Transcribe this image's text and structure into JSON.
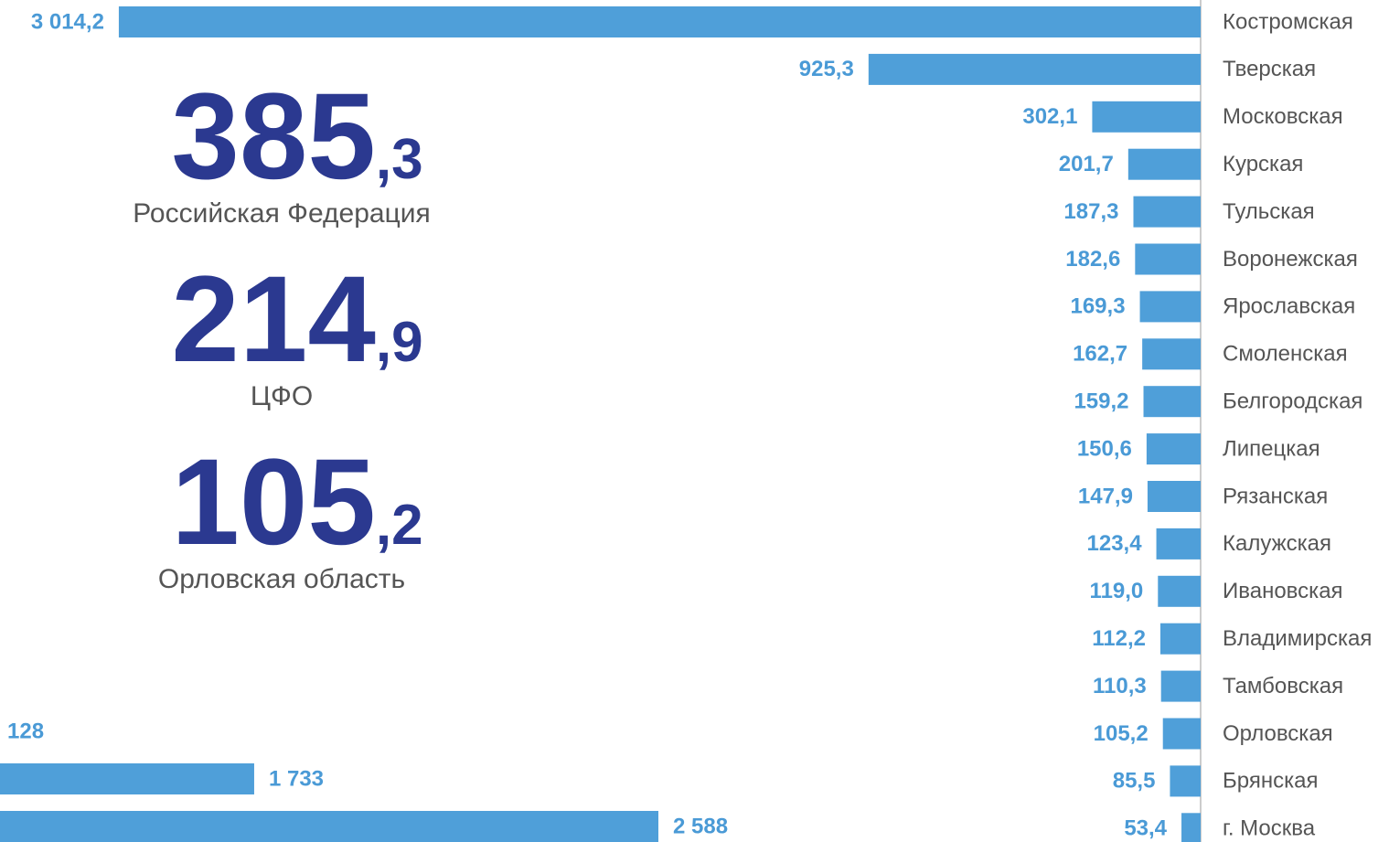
{
  "chart_data": [
    {
      "type": "bar",
      "orientation": "horizontal",
      "color": "#4f9fd9",
      "categories": [
        "Костромская",
        "Тверская",
        "Московская",
        "Курская",
        "Тульская",
        "Воронежская",
        "Ярославская",
        "Смоленская",
        "Белгородская",
        "Липецкая",
        "Рязанская",
        "Калужская",
        "Ивановская",
        "Владимирская",
        "Тамбовская",
        "Орловская",
        "Брянская",
        "г. Москва"
      ],
      "values": [
        3014.2,
        925.3,
        302.1,
        201.7,
        187.3,
        182.6,
        169.3,
        162.7,
        159.2,
        150.6,
        147.9,
        123.4,
        119.0,
        112.2,
        110.3,
        105.2,
        85.5,
        53.4
      ],
      "value_labels": [
        "3 014,2",
        "925,3",
        "302,1",
        "201,7",
        "187,3",
        "182,6",
        "169,3",
        "162,7",
        "159,2",
        "150,6",
        "147,9",
        "123,4",
        "119,0",
        "112,2",
        "110,3",
        "105,2",
        "85,5",
        "53,4"
      ]
    },
    {
      "type": "bar",
      "orientation": "horizontal",
      "color": "#4f9fd9",
      "values": [
        128,
        1733,
        2588
      ],
      "value_labels": [
        "128",
        "1 733",
        "2 588"
      ]
    }
  ],
  "highlights": [
    {
      "integer": "385",
      "fraction": ",3",
      "label": "Российская Федерация"
    },
    {
      "integer": "214",
      "fraction": ",9",
      "label": "ЦФО"
    },
    {
      "integer": "105",
      "fraction": ",2",
      "label": "Орловская область"
    }
  ]
}
